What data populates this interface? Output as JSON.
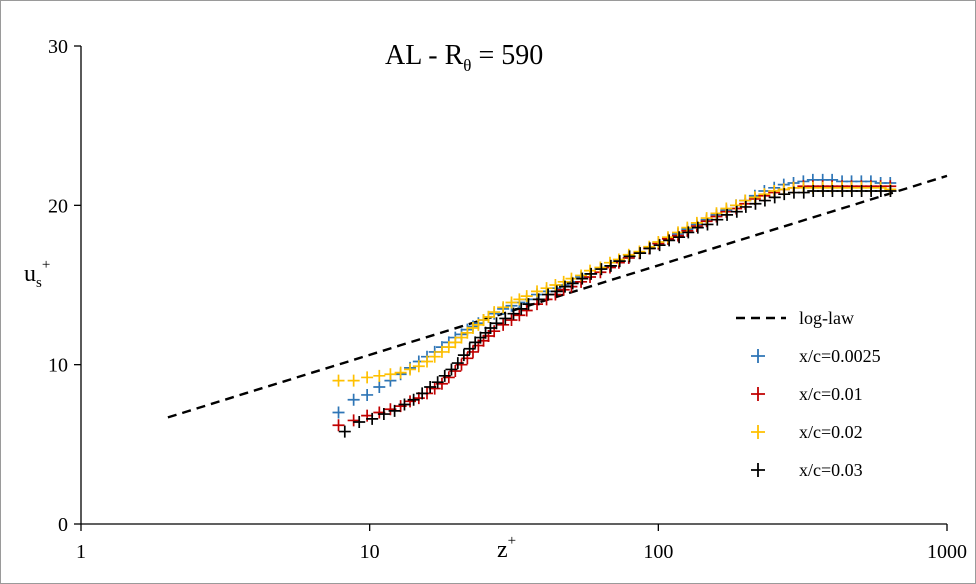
{
  "chart_data": {
    "type": "scatter",
    "title_main": "AL - R",
    "title_sub": "θ",
    "title_rest": " = 590",
    "xlabel_main": "z",
    "xlabel_sup": "+",
    "ylabel_main": "u",
    "ylabel_sub": "s",
    "ylabel_sup": "+",
    "xscale": "log",
    "xlim": [
      1,
      1000
    ],
    "ylim": [
      0,
      30
    ],
    "x_ticks": [
      1,
      10,
      100,
      1000
    ],
    "x_tick_labels": [
      "1",
      "10",
      "100",
      "1000"
    ],
    "y_ticks": [
      0,
      10,
      20,
      30
    ],
    "y_tick_labels": [
      "0",
      "10",
      "20",
      "30"
    ],
    "grid": false,
    "legend_position": "right",
    "log_law": {
      "name": "log-law",
      "kappa": 0.41,
      "B": 5.0,
      "x": [
        2,
        1000
      ],
      "color": "#000000"
    },
    "series": [
      {
        "name": "x/c=0.0025",
        "color": "#2e75b6",
        "x": [
          7.8,
          8.8,
          9.8,
          10.8,
          11.8,
          12.8,
          13.8,
          14.8,
          15.8,
          16.8,
          17.8,
          18.8,
          19.8,
          20.8,
          21.8,
          22.8,
          23.8,
          24.8,
          25.8,
          27,
          29,
          31,
          33,
          35,
          38,
          41,
          44,
          47,
          50,
          54,
          58,
          63,
          68,
          73,
          79,
          86,
          93,
          100,
          108,
          117,
          126,
          136,
          147,
          159,
          172,
          186,
          200,
          216,
          233,
          252,
          272,
          294,
          318,
          343,
          371,
          400,
          433,
          467,
          505,
          545,
          589,
          636
        ],
        "y": [
          7.0,
          7.8,
          8.1,
          8.6,
          9.0,
          9.4,
          9.8,
          10.2,
          10.5,
          10.8,
          11.1,
          11.4,
          11.7,
          11.9,
          12.2,
          12.4,
          12.6,
          12.8,
          13.0,
          13.2,
          13.5,
          13.7,
          13.9,
          14.1,
          14.4,
          14.6,
          14.8,
          15.0,
          15.2,
          15.5,
          15.7,
          16.0,
          16.2,
          16.5,
          16.7,
          17.0,
          17.3,
          17.6,
          17.9,
          18.2,
          18.5,
          18.8,
          19.1,
          19.4,
          19.7,
          20.0,
          20.3,
          20.6,
          20.9,
          21.1,
          21.3,
          21.4,
          21.5,
          21.6,
          21.6,
          21.6,
          21.5,
          21.5,
          21.5,
          21.5,
          21.4,
          21.4
        ]
      },
      {
        "name": "x/c=0.01",
        "color": "#c00000",
        "x": [
          7.8,
          8.8,
          9.8,
          10.8,
          11.8,
          12.8,
          13.8,
          14.8,
          15.8,
          16.8,
          17.8,
          18.8,
          19.8,
          20.8,
          21.8,
          22.8,
          23.8,
          24.8,
          25.8,
          27,
          29,
          31,
          33,
          35,
          38,
          41,
          44,
          47,
          50,
          54,
          58,
          63,
          68,
          73,
          79,
          86,
          93,
          100,
          108,
          117,
          126,
          136,
          147,
          159,
          172,
          186,
          200,
          216,
          233,
          252,
          272,
          294,
          318,
          343,
          371,
          400,
          433,
          467,
          505,
          545,
          589,
          636
        ],
        "y": [
          6.2,
          6.5,
          6.8,
          7.0,
          7.2,
          7.4,
          7.7,
          7.9,
          8.2,
          8.5,
          8.8,
          9.2,
          9.6,
          10.0,
          10.4,
          10.8,
          11.2,
          11.5,
          11.8,
          12.1,
          12.5,
          12.8,
          13.1,
          13.4,
          13.8,
          14.1,
          14.4,
          14.7,
          14.9,
          15.2,
          15.5,
          15.8,
          16.1,
          16.4,
          16.7,
          17.0,
          17.3,
          17.6,
          17.9,
          18.1,
          18.4,
          18.7,
          19.0,
          19.3,
          19.6,
          19.8,
          20.1,
          20.4,
          20.6,
          20.8,
          21.0,
          21.1,
          21.2,
          21.2,
          21.2,
          21.2,
          21.2,
          21.2,
          21.2,
          21.2,
          21.2,
          21.2
        ]
      },
      {
        "name": "x/c=0.02",
        "color": "#ffc000",
        "x": [
          7.8,
          8.8,
          9.8,
          10.8,
          11.8,
          12.8,
          13.8,
          14.8,
          15.8,
          16.8,
          17.8,
          18.8,
          19.8,
          20.8,
          21.8,
          22.8,
          23.8,
          24.8,
          25.8,
          27,
          29,
          31,
          33,
          35,
          38,
          41,
          44,
          47,
          50,
          54,
          58,
          63,
          68,
          73,
          79,
          86,
          93,
          100,
          108,
          117,
          126,
          136,
          147,
          159,
          172,
          186,
          200,
          216,
          233,
          252,
          272,
          294,
          318,
          343,
          371,
          400,
          433,
          467,
          505,
          545,
          589,
          636
        ],
        "y": [
          9.0,
          9.0,
          9.2,
          9.3,
          9.4,
          9.5,
          9.7,
          9.9,
          10.2,
          10.5,
          10.8,
          11.1,
          11.4,
          11.7,
          12.0,
          12.3,
          12.5,
          12.8,
          13.0,
          13.3,
          13.6,
          13.9,
          14.1,
          14.3,
          14.6,
          14.8,
          15.0,
          15.2,
          15.4,
          15.6,
          15.9,
          16.1,
          16.4,
          16.6,
          16.9,
          17.1,
          17.4,
          17.7,
          18.0,
          18.3,
          18.6,
          18.9,
          19.2,
          19.5,
          19.8,
          20.0,
          20.3,
          20.5,
          20.7,
          20.9,
          21.0,
          21.1,
          21.1,
          21.1,
          21.1,
          21.1,
          21.1,
          21.1,
          21.1,
          21.1,
          21.1,
          21.0
        ]
      },
      {
        "name": "x/c=0.03",
        "color": "#000000",
        "x": [
          8.2,
          9.2,
          10.2,
          11.2,
          12.2,
          13.2,
          14.2,
          15.2,
          16.2,
          17.2,
          18.2,
          19.2,
          20.2,
          21.2,
          22.2,
          23.2,
          24.2,
          25.2,
          26.2,
          27.5,
          29.5,
          31.5,
          33.5,
          35.5,
          38.5,
          41.5,
          44.5,
          47.5,
          50.5,
          54.5,
          58.5,
          63.5,
          68.5,
          73.5,
          79.5,
          86.5,
          93.5,
          101,
          109,
          118,
          127,
          137,
          148,
          160,
          173,
          187,
          201,
          217,
          234,
          253,
          273,
          295,
          319,
          344,
          372,
          401,
          434,
          468,
          506,
          546,
          590,
          637
        ],
        "y": [
          5.8,
          6.4,
          6.6,
          6.9,
          7.1,
          7.5,
          7.8,
          8.2,
          8.6,
          8.9,
          9.3,
          9.7,
          10.1,
          10.6,
          11.0,
          11.4,
          11.7,
          12.0,
          12.3,
          12.6,
          12.9,
          13.2,
          13.5,
          13.8,
          14.1,
          14.4,
          14.6,
          14.9,
          15.1,
          15.4,
          15.7,
          16.0,
          16.2,
          16.5,
          16.8,
          17.0,
          17.3,
          17.5,
          17.8,
          18.0,
          18.3,
          18.6,
          18.8,
          19.1,
          19.4,
          19.6,
          19.9,
          20.1,
          20.3,
          20.5,
          20.7,
          20.8,
          20.8,
          20.9,
          20.9,
          20.9,
          20.9,
          20.9,
          20.9,
          20.9,
          20.9,
          20.9
        ]
      }
    ]
  }
}
